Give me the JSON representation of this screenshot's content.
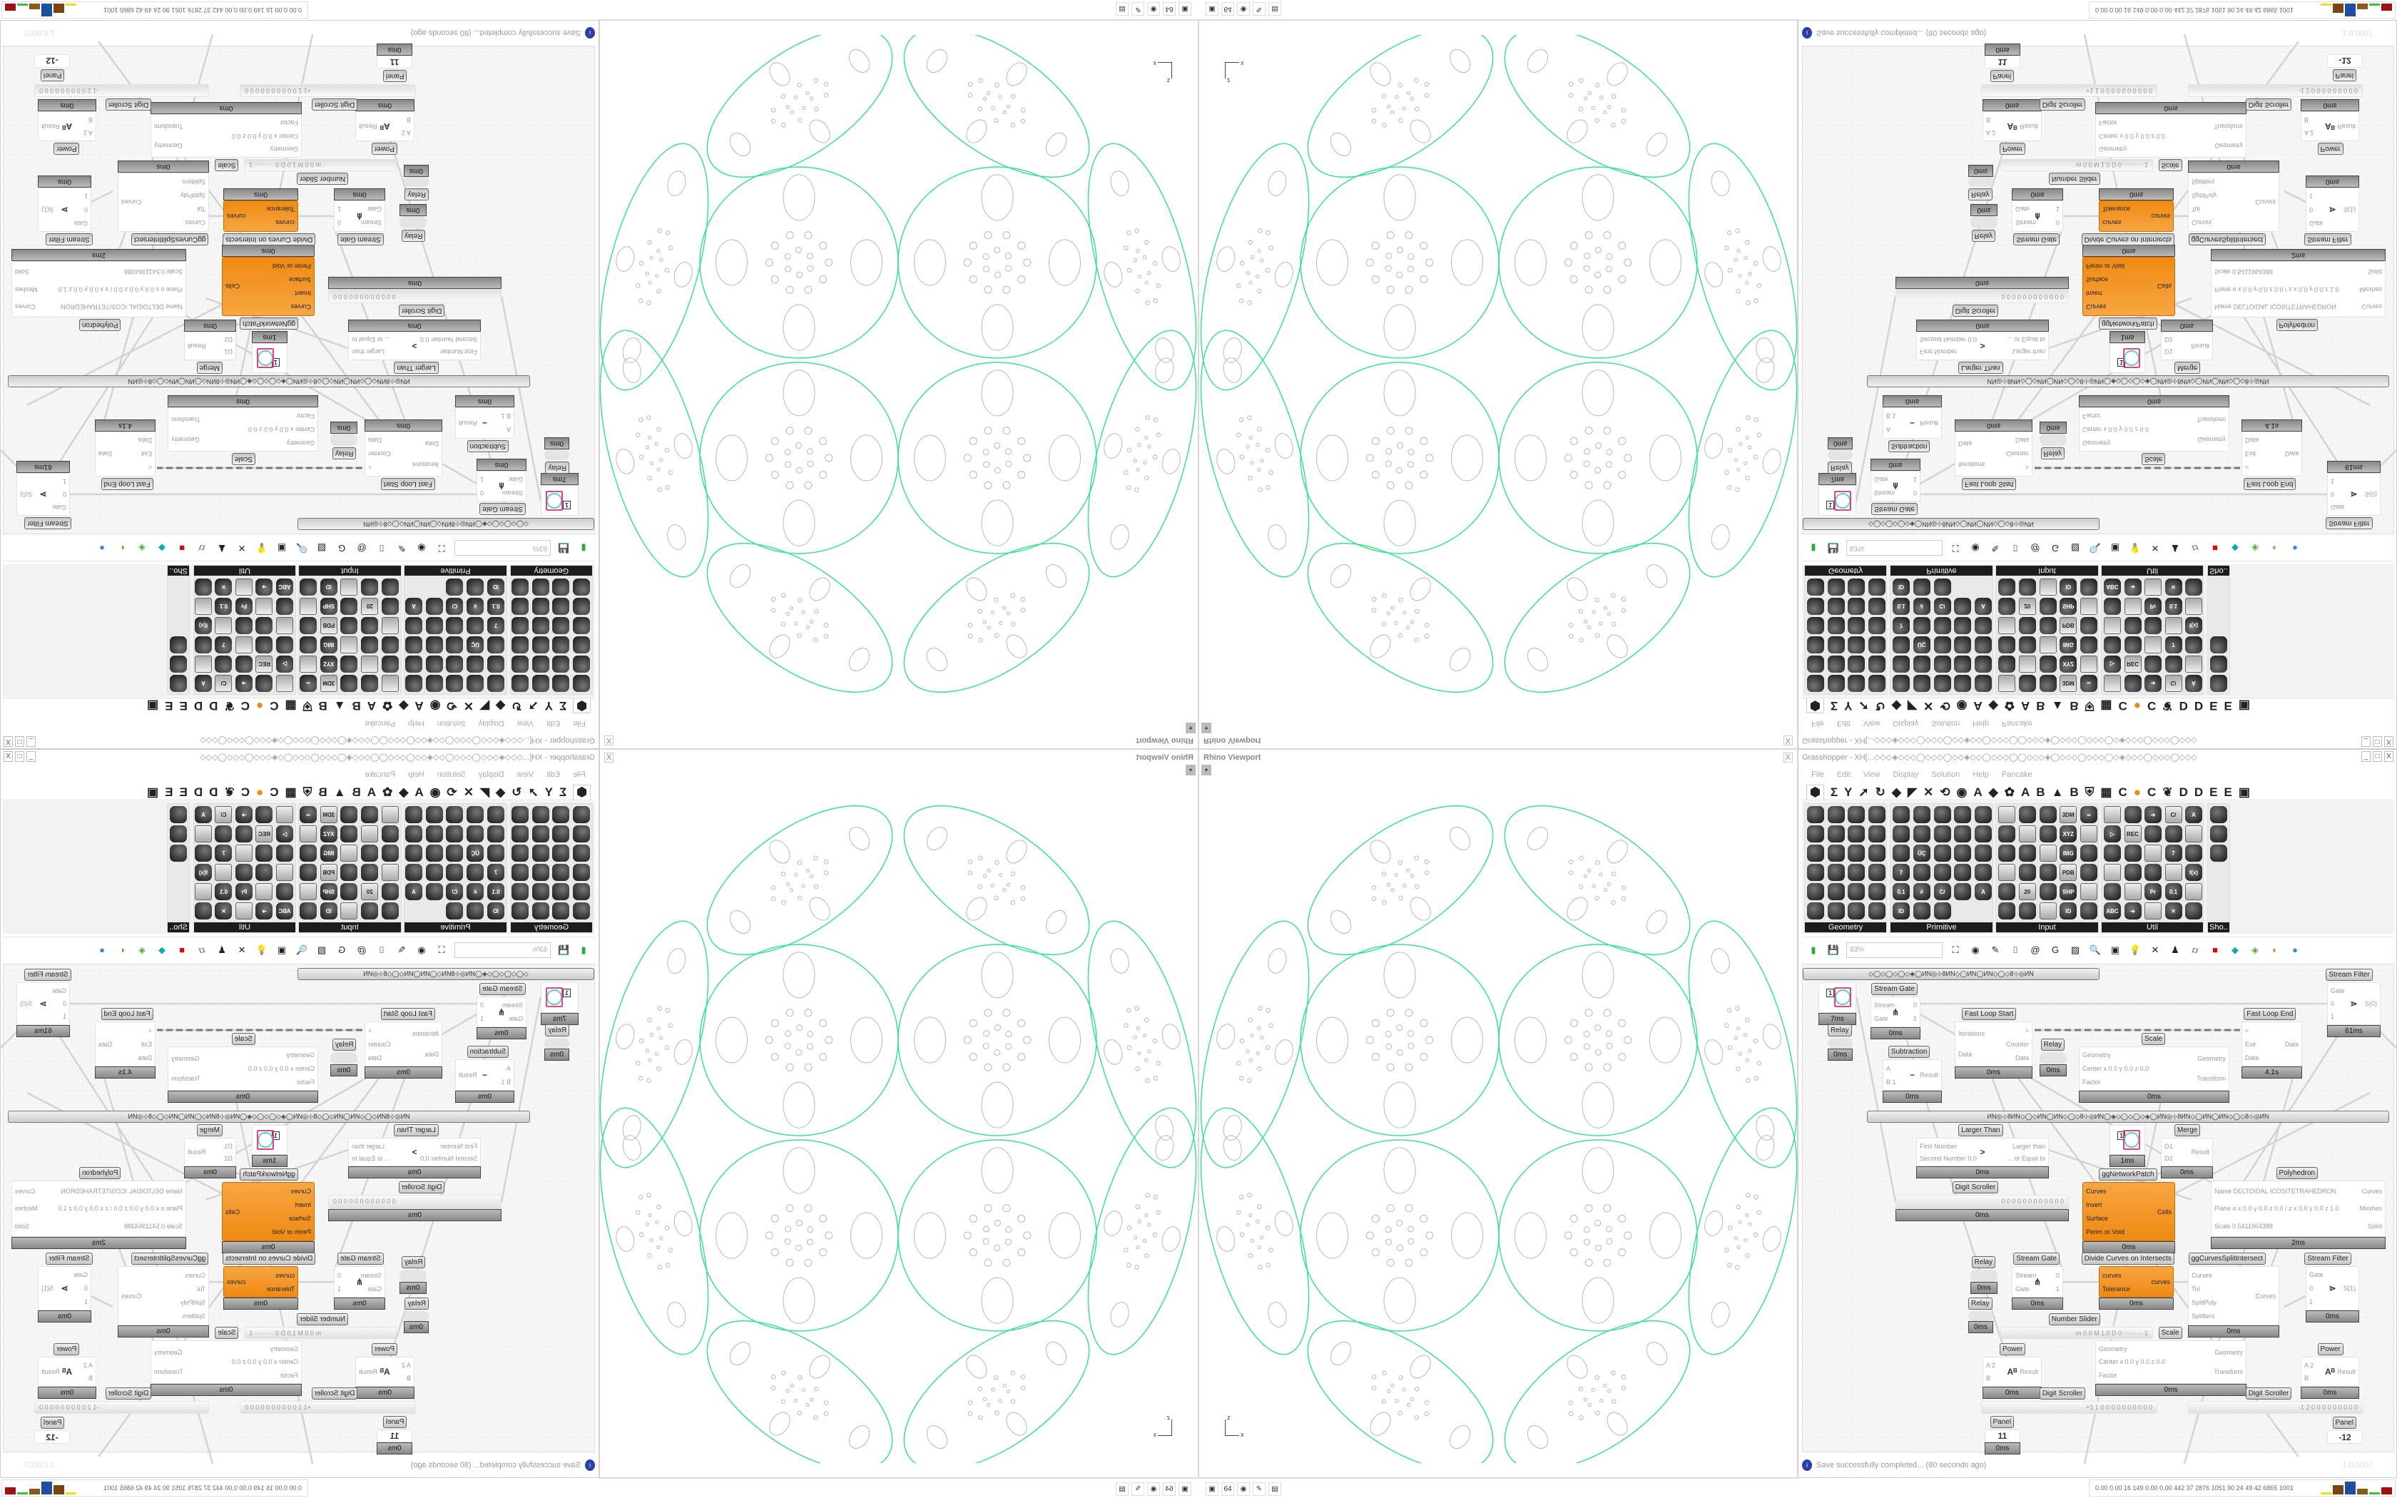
{
  "viewport": {
    "title": "Rhino Viewport",
    "close": "X",
    "dropdown": "▾",
    "axis_x": "x",
    "axis_z": "z",
    "curve_color": "#3ee08f",
    "detail_color": "#b8b8b8"
  },
  "taskbar": {
    "apps": [
      {
        "name": "installer",
        "glyph": "▣"
      },
      {
        "name": "c64-disk",
        "glyph": "64"
      },
      {
        "name": "firefox",
        "glyph": "◉"
      },
      {
        "name": "inkscape",
        "glyph": "✎"
      },
      {
        "name": "calculator",
        "glyph": "▤"
      }
    ],
    "tray_text": "0.00 0.00  16  149 0.00 0.00 442  37  2876 1051  90  24  49  42  6865 1001",
    "bars": [
      {
        "color": "#e6e21a",
        "level": 0.1
      },
      {
        "color": "#7a4310",
        "level": 0.6
      },
      {
        "color": "#1f4fa0",
        "level": 0.85
      },
      {
        "color": "#8a5a1a",
        "level": 0.35
      },
      {
        "color": "#40c040",
        "level": 0.1
      },
      {
        "color": "#a01010",
        "level": 0.45
      }
    ]
  },
  "gh": {
    "title": "Grasshopper - XH[...◇◇◇◈◇◇◇◯◇◇◇◯◇◇◈◇◇◯◇◇◇◯◯◇◇◇◈◯◇◇◇◯◇◇◇◯◇◈◇◇◇◯◇◇◇◯◇◇◇",
    "win_buttons": [
      "_",
      "□",
      "X"
    ],
    "menu": [
      "File",
      "Edit",
      "View",
      "Display",
      "Solution",
      "Help",
      "Pancake"
    ],
    "tabs": [
      "⬢",
      "Σ",
      "Y",
      "➚",
      "↻",
      "◆",
      "◤",
      "✕",
      "⟲",
      "◉",
      "A",
      "◆",
      "✿",
      "A",
      "B",
      "▲",
      "B",
      "⛨",
      "▦",
      "C",
      "●",
      "C",
      "❦",
      "D",
      "D",
      "E",
      "E",
      "▣"
    ],
    "accent_orange": "#ef8a12",
    "panels": [
      {
        "label": "Geometry",
        "icons": [
          "",
          "",
          "",
          "",
          "",
          "",
          "",
          "",
          "",
          "",
          "",
          "",
          "",
          "",
          "",
          "",
          "",
          "",
          "",
          "",
          "",
          "",
          "",
          ""
        ]
      },
      {
        "label": "Primitive",
        "icons": [
          "",
          "",
          "",
          "",
          "",
          "",
          "",
          "",
          "",
          "",
          "",
          "ÜÇ",
          "",
          "",
          "",
          "7",
          "",
          "",
          "",
          "",
          "0.1",
          "#",
          "C/",
          "",
          "A",
          "ID",
          "",
          ""
        ]
      },
      {
        "label": "Input",
        "icons": [
          "",
          "",
          "",
          "3DM",
          "∞",
          "",
          "",
          "",
          "XYZ",
          "",
          "",
          "",
          "",
          "IMG",
          "",
          "",
          "",
          "",
          "PDB",
          "",
          "",
          "20",
          "",
          "SHP",
          "",
          "",
          "",
          "",
          "ID",
          ""
        ]
      },
      {
        "label": "Util",
        "icons": [
          "",
          "",
          "➜",
          "C/",
          "A",
          "▷",
          "REC",
          "",
          "",
          "",
          "",
          "",
          "",
          "7",
          "",
          "",
          "",
          "",
          "",
          "f(x)",
          "",
          "",
          "Pr",
          "0.1",
          "",
          "ABC",
          "➜",
          "",
          "✕",
          ""
        ]
      },
      {
        "label": "Sho..",
        "icons": [
          "",
          "",
          ""
        ]
      }
    ],
    "toolbar": {
      "zoom": "63%",
      "icons": [
        "open-file",
        "save",
        "zoom-extents",
        "preview-eye",
        "sketch",
        "bake",
        "at",
        "gha",
        "drawing",
        "search",
        "package",
        "bulb",
        "cross",
        "ghost",
        "cylinder",
        "red-box",
        "teal",
        "green",
        "sphere-half",
        "blue-sphere"
      ]
    },
    "canvas": {
      "groups": [
        "◇◯◇◯◇◯◇◈◯ИN◎⊹8ИN◇◯ИN◯ИN◇◯◇8⊹◎ИN",
        "ИN◎⊹8ИN◇◯◇ИN◯ИN◇◯◇8⊹◎ИN◯◈◇◯◇◯◇◈◯ИN◎⊹8ИN◇◯ИN◯ИN◇◯◇8⊹◎ИN"
      ],
      "nodes": [
        {
          "label": "",
          "kind": "swatch",
          "center": "1",
          "inputs": [
            "",
            ""
          ],
          "outputs": [
            ""
          ],
          "time": "7ms"
        },
        {
          "label": "Relay",
          "kind": "relay",
          "inputs": [],
          "outputs": [],
          "time": "0ms"
        },
        {
          "label": "Stream Gate",
          "inputs": [
            "Stream",
            "Gate"
          ],
          "outputs": [
            "0",
            "1"
          ],
          "center": "⋔",
          "time": "0ms"
        },
        {
          "label": "Subtraction",
          "inputs": [
            "A",
            "B 1"
          ],
          "outputs": [
            "Result"
          ],
          "center": "−",
          "time": "0ms"
        },
        {
          "label": "Fast Loop Start",
          "inputs": [
            "Iterations",
            "Data"
          ],
          "outputs": [
            ">",
            "Counter",
            "Data"
          ],
          "time": "0ms"
        },
        {
          "label": "Relay",
          "kind": "relay",
          "inputs": [],
          "outputs": [],
          "time": "0ms"
        },
        {
          "label": "Scale",
          "inputs": [
            "Geometry",
            "Center x 0.0 y 0.0 z 0.0",
            "Factor"
          ],
          "outputs": [
            "Geometry",
            "Transform"
          ],
          "time": "0ms"
        },
        {
          "label": "Fast Loop End",
          "inputs": [
            "<",
            "Exit",
            "Data"
          ],
          "outputs": [
            "Data"
          ],
          "time": "4.1s"
        },
        {
          "label": "Stream Filter",
          "inputs": [
            "Gate",
            "0",
            "1"
          ],
          "outputs": [
            "S(0)"
          ],
          "center": "⋗",
          "time": "61ms"
        },
        {
          "label": "Larger Than",
          "inputs": [
            "First Number",
            "Second Number 0.0"
          ],
          "outputs": [
            "Larger than",
            "... or Equal to"
          ],
          "center": ">",
          "time": "0ms"
        },
        {
          "label": "Digit Scroller",
          "kind": "scroller",
          "value": "0 0 0 0 0 0 0 0 0 0 0 0",
          "inputs": [],
          "outputs": [],
          "time": "0ms"
        },
        {
          "label": "",
          "kind": "swatch",
          "center": "1",
          "inputs": [
            "",
            ""
          ],
          "outputs": [
            ""
          ],
          "time": "1ms"
        },
        {
          "label": "Merge",
          "inputs": [
            "D1",
            "D2"
          ],
          "outputs": [
            "Result"
          ],
          "time": "0ms"
        },
        {
          "label": "ggNetworkPatch",
          "kind": "orange",
          "inputs": [
            "Curves",
            "Invert",
            "Surface",
            "Perim or Void"
          ],
          "outputs": [
            "Cells"
          ],
          "time": "0ms"
        },
        {
          "label": "Polyhedron",
          "inputs": [
            "Name DELTOIDAL ICOSITETRAHEDRON",
            "Plane  o x 0.0 y 0.0 z 0.0 / z x 0.0 y 0.0 z 1.0",
            "Scale 0.5411964388"
          ],
          "outputs": [
            "Curves",
            "Meshes",
            "Solid"
          ],
          "time": "2ms"
        },
        {
          "label": "Relay",
          "kind": "relay",
          "inputs": [],
          "outputs": [],
          "time": "0ms"
        },
        {
          "label": "Relay",
          "kind": "relay",
          "inputs": [],
          "outputs": [],
          "time": "0ms"
        },
        {
          "label": "Stream Gate",
          "inputs": [
            "Stream",
            "Gate"
          ],
          "outputs": [
            "0",
            "1"
          ],
          "center": "⋔",
          "time": "0ms"
        },
        {
          "label": "Divide Curves on Intersects",
          "kind": "orange",
          "inputs": [
            "curves",
            "Tolerance"
          ],
          "outputs": [
            "curves"
          ],
          "time": "0ms"
        },
        {
          "label": "ggCurvesSplitIntersect",
          "inputs": [
            "Curves",
            "Tol",
            "SplitPoly",
            "Splitters"
          ],
          "outputs": [
            "Curves"
          ],
          "time": "0ms"
        },
        {
          "label": "Stream Filter",
          "inputs": [
            "Gate",
            "0",
            "1"
          ],
          "outputs": [
            "S(1)"
          ],
          "center": "⋗",
          "time": "0ms"
        },
        {
          "label": "Number Slider",
          "kind": "scroller",
          "value": "m 0.0  M 1.0  D 0  ·········  1",
          "inputs": [],
          "outputs": []
        },
        {
          "label": "Scale",
          "inputs": [
            "Geometry",
            "Center x 0.0 y 0.0 z 0.0",
            "Factor"
          ],
          "outputs": [
            "Geometry",
            "Transform"
          ],
          "time": "0ms"
        },
        {
          "label": "Power",
          "inputs": [
            "A 2",
            "B"
          ],
          "outputs": [
            "Result"
          ],
          "center": "Aᴮ",
          "time": "0ms"
        },
        {
          "label": "Power",
          "inputs": [
            "A 2",
            "B"
          ],
          "outputs": [
            "Result"
          ],
          "center": "Aᴮ",
          "time": "0ms"
        },
        {
          "label": "Digit Scroller",
          "kind": "scroller",
          "value": "+1 1 0 0 0 0 0 0 0 0 0 0",
          "inputs": [],
          "outputs": []
        },
        {
          "label": "Digit Scroller",
          "kind": "scroller",
          "value": "-1 2 0 0 0 0 0 0 0 0 0",
          "inputs": [],
          "outputs": []
        },
        {
          "label": "Panel",
          "kind": "panel",
          "center": "11",
          "inputs": [],
          "outputs": [],
          "time": "0ms"
        },
        {
          "label": "Panel",
          "kind": "panel",
          "center": "-12",
          "inputs": [],
          "outputs": []
        }
      ]
    },
    "status": {
      "message": "Save successfully completed... (80 seconds ago)",
      "version": "1.0.0007"
    }
  }
}
